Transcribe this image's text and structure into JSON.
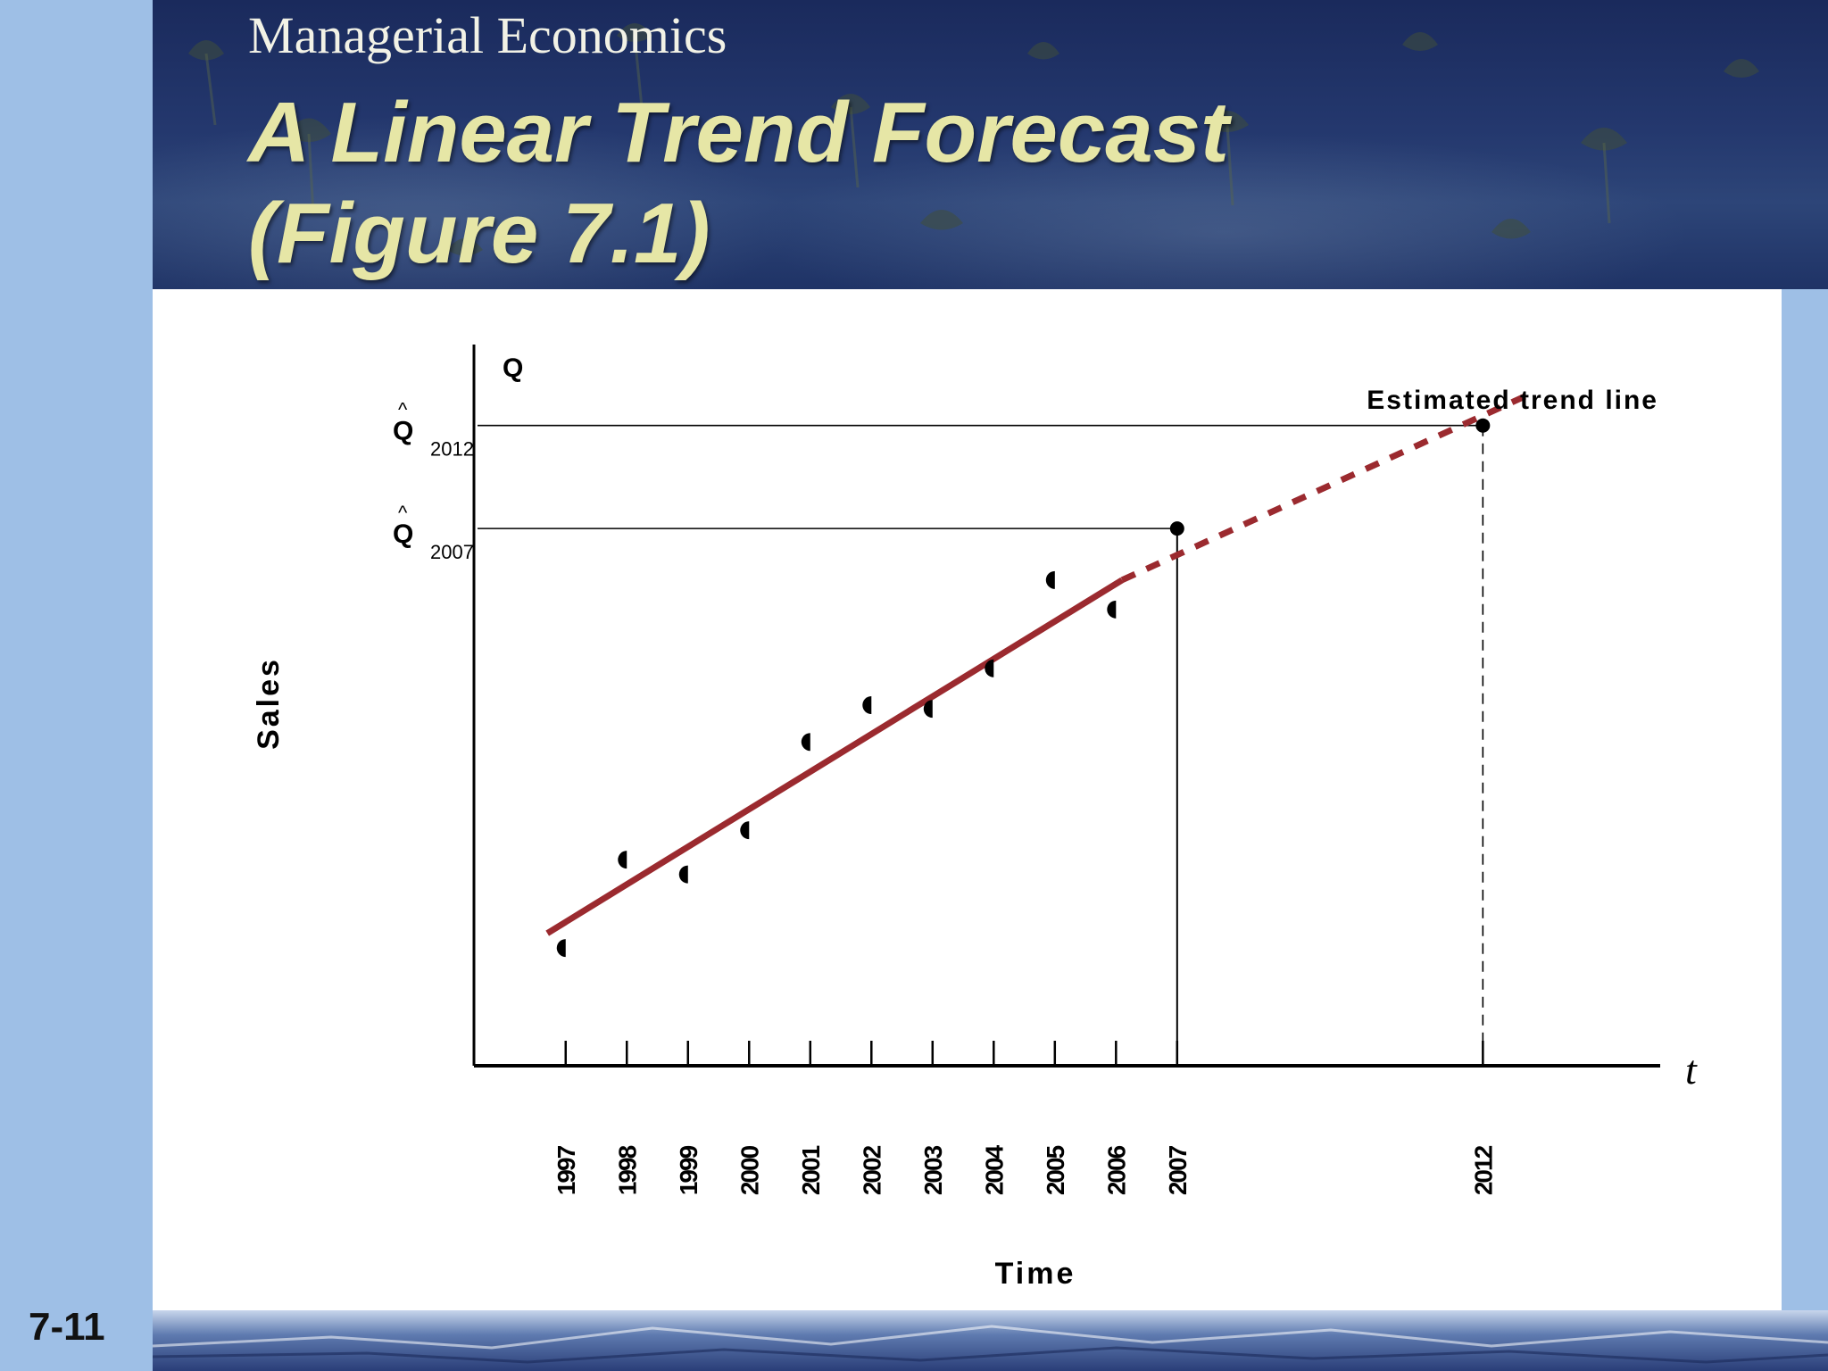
{
  "slide": {
    "course_title": "Managerial Economics",
    "title_line1": "A Linear Trend Forecast",
    "title_line2": "(Figure 7.1)",
    "slide_number": "7-11"
  },
  "colors": {
    "header_bg": "#1f3366",
    "title_text": "#e6e6a6",
    "side_band": "#9ebfe6",
    "trend_line": "#9b2a2f"
  },
  "chart_data": {
    "type": "scatter",
    "ylabel": "Sales",
    "y_axis_symbol": "Q",
    "xlabel": "Time",
    "x_axis_symbol": "t",
    "x_ticks": [
      "1997",
      "1998",
      "1999",
      "2000",
      "2001",
      "2002",
      "2003",
      "2004",
      "2005",
      "2006",
      "2007",
      "2012"
    ],
    "series": [
      {
        "points": [
          {
            "x": 1997,
            "y": 1.6
          },
          {
            "x": 1998,
            "y": 2.8
          },
          {
            "x": 1999,
            "y": 2.6
          },
          {
            "x": 2000,
            "y": 3.2
          },
          {
            "x": 2001,
            "y": 4.4
          },
          {
            "x": 2002,
            "y": 4.9
          },
          {
            "x": 2003,
            "y": 4.85
          },
          {
            "x": 2004,
            "y": 5.4
          },
          {
            "x": 2005,
            "y": 6.6
          },
          {
            "x": 2006,
            "y": 6.2
          }
        ]
      }
    ],
    "trend_line": {
      "label": "Estimated trend line",
      "solid_from": {
        "x": 1996.7,
        "y": 1.8
      },
      "solid_to": {
        "x": 2006.1,
        "y": 6.6
      },
      "dashed_to": {
        "x": 2012.7,
        "y": 9.1
      }
    },
    "forecasts": [
      {
        "year": 2007,
        "y": 7.3,
        "symbol": "Q",
        "subscript": "2007"
      },
      {
        "year": 2012,
        "y": 8.7,
        "symbol": "Q",
        "subscript": "2012"
      }
    ],
    "ylim": [
      0,
      9.8
    ],
    "xlim": [
      1995.5,
      2014.9
    ],
    "grid": false,
    "legend": "none"
  }
}
